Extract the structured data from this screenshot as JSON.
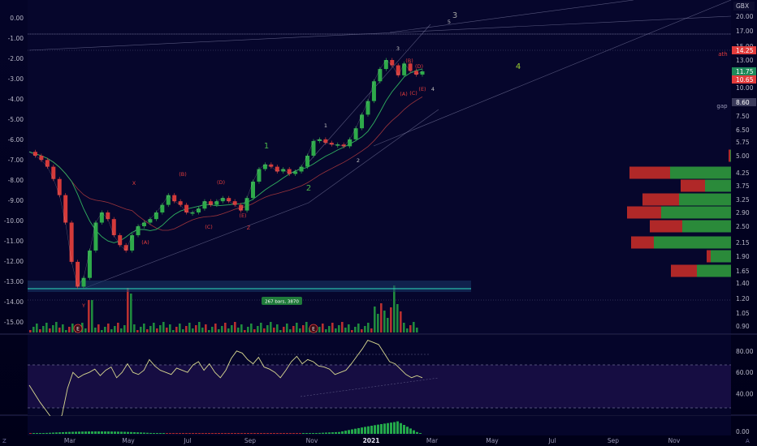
{
  "currency": "GBX",
  "chart_data": [
    {
      "type": "line",
      "title": "",
      "price_axis": {
        "ticks": [
          "20.00",
          "17.00",
          "15.00",
          "14.25",
          "13.00",
          "11.75",
          "10.65",
          "10.00",
          "8.60",
          "7.50",
          "6.50",
          "5.75",
          "5.00",
          "4.25",
          "3.75",
          "3.25",
          "2.90",
          "2.50",
          "2.15",
          "1.90",
          "1.65",
          "1.40",
          "1.20",
          "1.05",
          "0.90"
        ],
        "highlighted": [
          {
            "label": "14.25",
            "color": "#e23c3c"
          },
          {
            "label": "11.75",
            "color": "#1e8a5a"
          },
          {
            "label": "10.65",
            "color": "#e23c3c"
          },
          {
            "label": "8.60",
            "color": "#3a3a5a"
          }
        ],
        "log_scale": true
      },
      "pct_axis": {
        "ticks": [
          "0.00",
          "-1.00",
          "-2.00",
          "-3.00",
          "-4.00",
          "-5.00",
          "-6.00",
          "-7.00",
          "-8.00",
          "-9.00",
          "-10.00",
          "-11.00",
          "-12.00",
          "-13.00",
          "-14.00",
          "-15.00"
        ]
      },
      "x_axis": {
        "ticks": [
          "Mar",
          "May",
          "Jul",
          "Sep",
          "Nov",
          "2021",
          "Mar",
          "May",
          "Jul",
          "Sep",
          "Nov"
        ]
      },
      "series": [
        {
          "values": [
            5.2,
            5.0,
            4.8,
            4.5,
            4.0,
            3.4,
            2.6,
            1.8,
            1.35,
            1.5,
            2.0,
            2.6,
            2.9,
            2.7,
            2.3,
            2.1,
            2.0,
            2.3,
            2.5,
            2.6,
            2.7,
            2.9,
            3.1,
            3.4,
            3.2,
            3.1,
            2.9,
            2.9,
            3.0,
            3.2,
            3.1,
            3.2,
            3.3,
            3.2,
            3.1,
            2.95,
            3.3,
            3.9,
            4.4,
            4.6,
            4.5,
            4.3,
            4.4,
            4.2,
            4.3,
            4.5,
            5.0,
            5.8,
            5.9,
            5.7,
            5.6,
            5.6,
            5.5,
            5.9,
            6.6,
            7.6,
            8.7,
            10.5,
            12.0,
            13.0,
            12.4,
            11.2,
            12.6,
            11.8,
            11.3,
            11.75
          ]
        }
      ],
      "volume_profile": {
        "rows": [
          {
            "price": "5.00",
            "value": [
              2,
              1
            ]
          },
          {
            "price": "4.25",
            "value": [
              50,
              75
            ]
          },
          {
            "price": "3.75",
            "value": [
              30,
              32
            ]
          },
          {
            "price": "3.25",
            "value": [
              45,
              64
            ]
          },
          {
            "price": "2.90",
            "value": [
              42,
              86
            ]
          },
          {
            "price": "2.50",
            "value": [
              40,
              60
            ]
          },
          {
            "price": "2.15",
            "value": [
              28,
              95
            ]
          },
          {
            "price": "1.90",
            "value": [
              5,
              25
            ]
          },
          {
            "price": "1.65",
            "value": [
              32,
              42
            ]
          }
        ]
      },
      "elliott_labels": [
        {
          "text": "X",
          "color": "#e23c3c"
        },
        {
          "text": "(B)",
          "color": "#e23c3c"
        },
        {
          "text": "(D)",
          "color": "#e23c3c"
        },
        {
          "text": "(A)",
          "color": "#e23c3c"
        },
        {
          "text": "(C)",
          "color": "#e23c3c"
        },
        {
          "text": "(E)",
          "color": "#e23c3c"
        },
        {
          "text": "Z",
          "color": "#e23c3c"
        },
        {
          "text": "Y",
          "color": "#e23c3c"
        },
        {
          "text": "1",
          "color": "#4ab54a"
        },
        {
          "text": "2",
          "color": "#4ab54a"
        },
        {
          "text": "3",
          "color": "#a0a0a0"
        },
        {
          "text": "4",
          "color": "#9acd32"
        },
        {
          "text": "1",
          "color": "#c0c0c0"
        },
        {
          "text": "2",
          "color": "#c0c0c0"
        },
        {
          "text": "3",
          "color": "#c0c0c0"
        },
        {
          "text": "5",
          "color": "#c0c0c0"
        },
        {
          "text": "(B)",
          "color": "#e23c3c"
        },
        {
          "text": "(D)",
          "color": "#e23c3c"
        },
        {
          "text": "(A)",
          "color": "#e23c3c"
        },
        {
          "text": "(C)",
          "color": "#e23c3c"
        },
        {
          "text": "(E)",
          "color": "#e23c3c"
        },
        {
          "text": "4",
          "color": "#c0c0c0"
        }
      ],
      "annotations": {
        "ath": "ath",
        "gap": "gap",
        "range_label": "267 bars, 3870",
        "earnings_marker": "E"
      }
    },
    {
      "type": "line",
      "title": "",
      "y_ticks": [
        "80.00",
        "60.00",
        "40.00"
      ],
      "ylim": [
        20,
        95
      ],
      "bands": [
        70,
        30
      ],
      "series": [
        {
          "values": [
            48,
            40,
            32,
            25,
            18,
            12,
            20,
            45,
            60,
            55,
            58,
            60,
            63,
            57,
            62,
            65,
            55,
            60,
            68,
            60,
            58,
            62,
            72,
            66,
            62,
            60,
            58,
            64,
            62,
            60,
            67,
            70,
            62,
            68,
            60,
            55,
            62,
            73,
            80,
            78,
            72,
            68,
            74,
            65,
            63,
            60,
            55,
            62,
            70,
            75,
            68,
            72,
            70,
            66,
            65,
            63,
            58,
            60,
            62,
            68,
            75,
            82,
            90,
            88,
            86,
            78,
            70,
            68,
            63,
            58,
            55,
            57,
            55
          ]
        }
      ]
    },
    {
      "type": "bar",
      "title": "",
      "y_ticks": [
        "0.00"
      ]
    }
  ]
}
